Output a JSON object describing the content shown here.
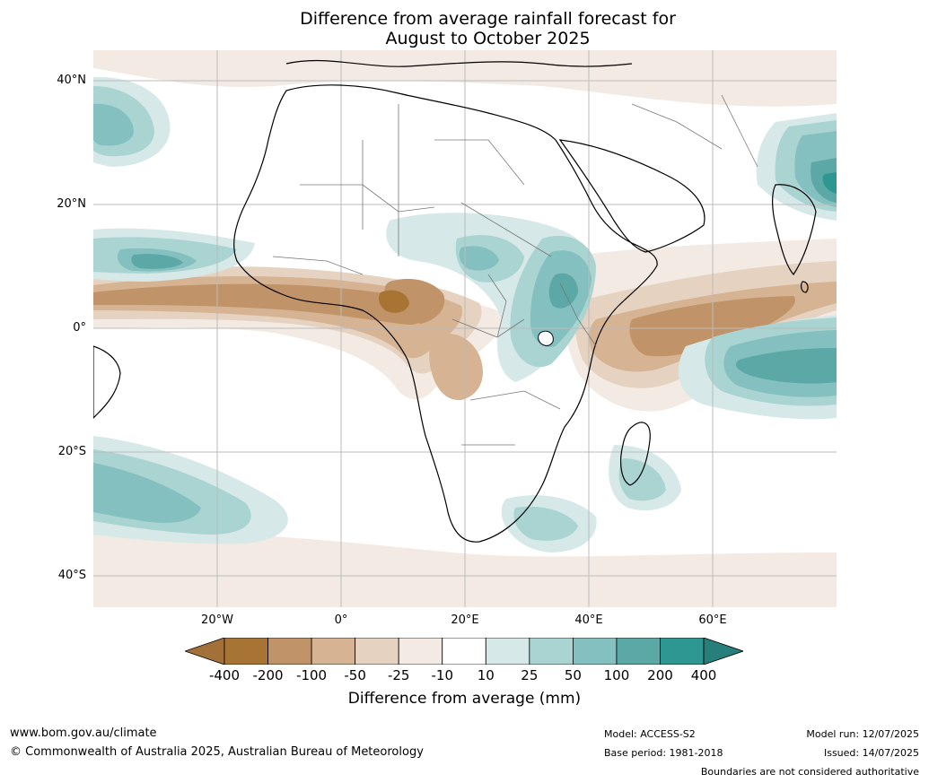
{
  "title_line1": "Difference from average rainfall forecast for",
  "title_line2": "August to October 2025",
  "lat_labels": [
    "40°N",
    "20°N",
    "0°",
    "20°S",
    "40°S"
  ],
  "lon_labels": [
    "20°W",
    "0°",
    "20°E",
    "40°E",
    "60°E"
  ],
  "colorbar": {
    "colors": [
      "#a3703a",
      "#a87434",
      "#c09468",
      "#d5b393",
      "#e5d2c1",
      "#f3ebe3",
      "#ffffff",
      "#d6e9e8",
      "#a9d4d2",
      "#83c0bf",
      "#5ba8a6",
      "#2e9792",
      "#287e7b"
    ],
    "ticks": [
      "-400",
      "-200",
      "-100",
      "-50",
      "-25",
      "-10",
      "10",
      "25",
      "50",
      "100",
      "200",
      "400"
    ],
    "label": "Difference from average (mm)"
  },
  "footer": {
    "website": "www.bom.gov.au/climate",
    "copyright": "© Commonwealth of Australia 2025, Australian Bureau of Meteorology",
    "model": "Model: ACCESS-S2",
    "base_period": "Base period: 1981-2018",
    "model_run": "Model run: 12/07/2025",
    "issued": "Issued: 14/07/2025",
    "disclaimer": "Boundaries are not considered authoritative"
  }
}
